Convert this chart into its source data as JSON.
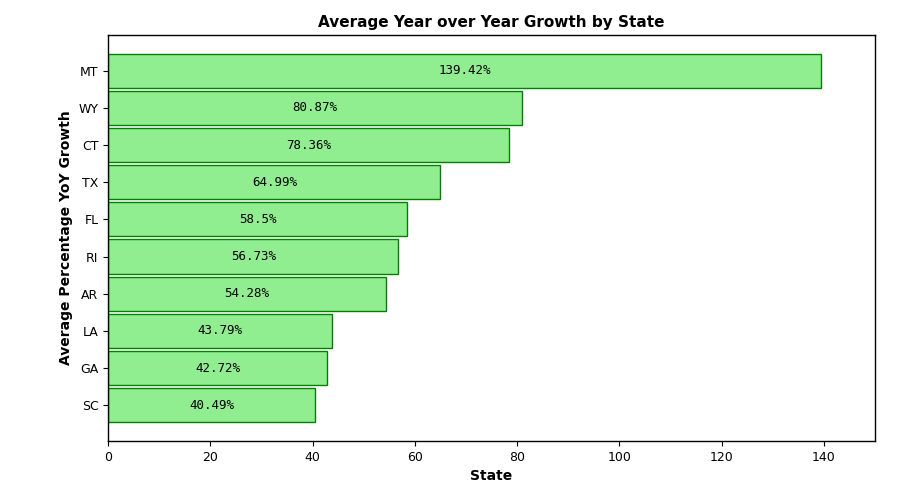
{
  "states": [
    "SC",
    "GA",
    "LA",
    "AR",
    "RI",
    "FL",
    "TX",
    "CT",
    "WY",
    "MT"
  ],
  "values": [
    40.49,
    42.72,
    43.79,
    54.28,
    56.73,
    58.5,
    64.99,
    78.36,
    80.87,
    139.42
  ],
  "labels": [
    "40.49%",
    "42.72%",
    "43.79%",
    "54.28%",
    "56.73%",
    "58.5%",
    "64.99%",
    "78.36%",
    "80.87%",
    "139.42%"
  ],
  "bar_color": "#90EE90",
  "bar_edgecolor": "#008000",
  "title": "Average Year over Year Growth by State",
  "xlabel": "State",
  "ylabel": "Average Percentage YoY Growth",
  "xlim": [
    0,
    150
  ],
  "xticks": [
    0,
    20,
    40,
    60,
    80,
    100,
    120,
    140
  ],
  "background_color": "#ffffff",
  "title_fontsize": 11,
  "label_fontsize": 10,
  "tick_fontsize": 9,
  "bar_label_fontsize": 9
}
